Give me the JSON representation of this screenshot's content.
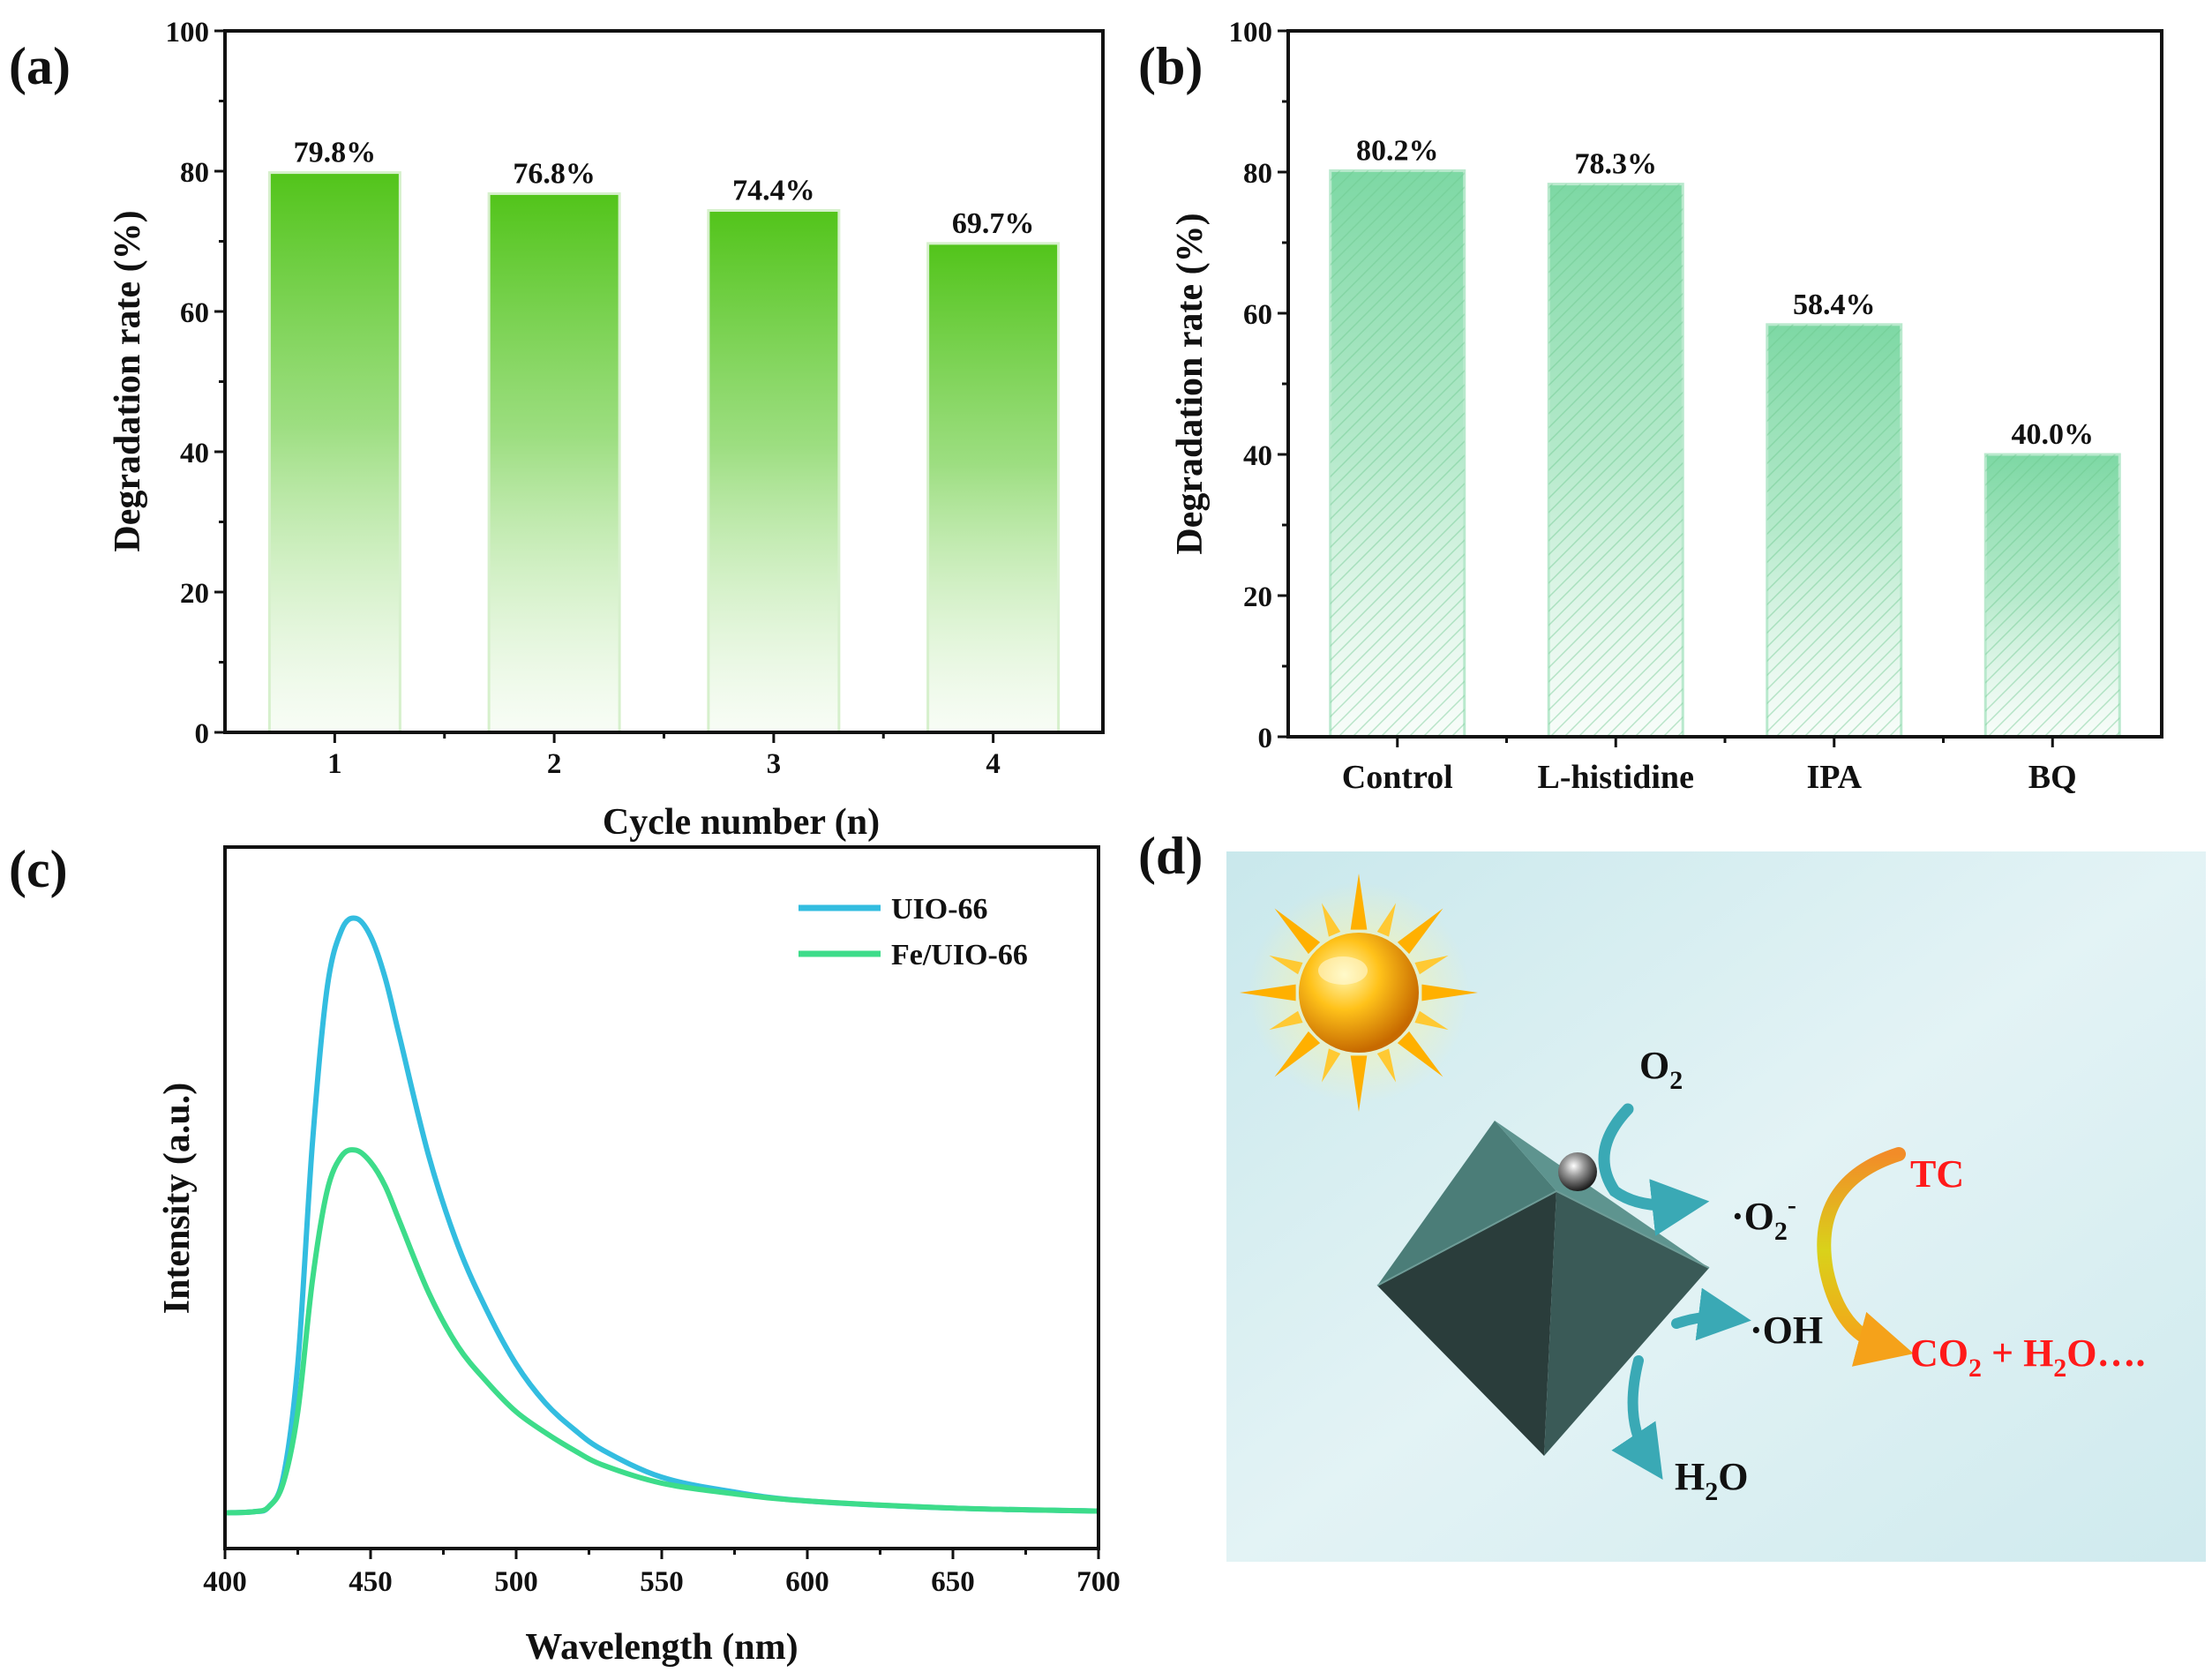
{
  "panels": {
    "a": "(a)",
    "b": "(b)",
    "c": "(c)",
    "d": "(d)"
  },
  "colors": {
    "panel_a_bar": "#52c41a",
    "panel_b_bar": "#7dd8a4",
    "uio66": "#33bde0",
    "fe_uio66": "#3ddc8a",
    "schematic_bg": "#d4eef0",
    "schematic_red": "#ff1a1a",
    "octahedron": "#4b7d78",
    "arrow": "#3aa9b5",
    "sun": "#ffb000"
  },
  "chart_data": [
    {
      "id": "a",
      "type": "bar",
      "categories": [
        "1",
        "2",
        "3",
        "4"
      ],
      "values": [
        79.8,
        76.8,
        74.4,
        69.7
      ],
      "value_labels": [
        "79.8%",
        "76.8%",
        "74.4%",
        "69.7%"
      ],
      "xlabel": "Cycle number (n)",
      "ylabel": "Degradation rate (%)",
      "ylim": [
        0,
        100
      ],
      "yticks": [
        "0",
        "20",
        "40",
        "60",
        "80",
        "100"
      ]
    },
    {
      "id": "b",
      "type": "bar",
      "categories": [
        "Control",
        "L-histidine",
        "IPA",
        "BQ"
      ],
      "values": [
        80.2,
        78.3,
        58.4,
        40.0
      ],
      "value_labels": [
        "80.2%",
        "78.3%",
        "58.4%",
        "40.0%"
      ],
      "xlabel": "",
      "ylabel": "Degradation rate (%)",
      "ylim": [
        0,
        100
      ],
      "yticks": [
        "0",
        "20",
        "40",
        "60",
        "80",
        "100"
      ]
    },
    {
      "id": "c",
      "type": "line",
      "xlabel": "Wavelength (nm)",
      "ylabel": "Intensity (a.u.)",
      "xlim": [
        400,
        700
      ],
      "ylim": [
        -0.06,
        1.12
      ],
      "xticks": [
        "400",
        "450",
        "500",
        "550",
        "600",
        "650",
        "700"
      ],
      "legend_position": "top-right",
      "series": [
        {
          "name": "UIO-66",
          "x": [
            400,
            410,
            415,
            420,
            425,
            430,
            435,
            440,
            445,
            450,
            455,
            460,
            470,
            480,
            490,
            500,
            510,
            520,
            530,
            550,
            575,
            600,
            650,
            700
          ],
          "y": [
            0.0,
            0.002,
            0.01,
            0.06,
            0.25,
            0.62,
            0.88,
            0.98,
            1.0,
            0.97,
            0.9,
            0.8,
            0.6,
            0.45,
            0.34,
            0.25,
            0.185,
            0.14,
            0.105,
            0.06,
            0.035,
            0.02,
            0.008,
            0.003
          ]
        },
        {
          "name": "Fe/UIO-66",
          "x": [
            400,
            410,
            415,
            420,
            425,
            430,
            435,
            440,
            445,
            450,
            455,
            460,
            470,
            480,
            490,
            500,
            510,
            520,
            530,
            550,
            575,
            600,
            650,
            700
          ],
          "y": [
            0.0,
            0.002,
            0.01,
            0.05,
            0.17,
            0.39,
            0.54,
            0.6,
            0.61,
            0.59,
            0.55,
            0.49,
            0.37,
            0.28,
            0.22,
            0.17,
            0.135,
            0.105,
            0.08,
            0.05,
            0.032,
            0.02,
            0.008,
            0.003
          ]
        }
      ]
    }
  ],
  "schematic": {
    "o2": "O",
    "o2_sub": "2",
    "o2_radical": "·O",
    "o2_radical_sub": "2",
    "o2_radical_sup": "-",
    "oh_radical": "·OH",
    "h2o_h": "H",
    "h2o_sub": "2",
    "h2o_o": "O",
    "tc": "TC",
    "prod_co": "CO",
    "prod_co_sub": "2",
    "prod_mid": " + H",
    "prod_h_sub": "2",
    "prod_tail": "O…."
  }
}
